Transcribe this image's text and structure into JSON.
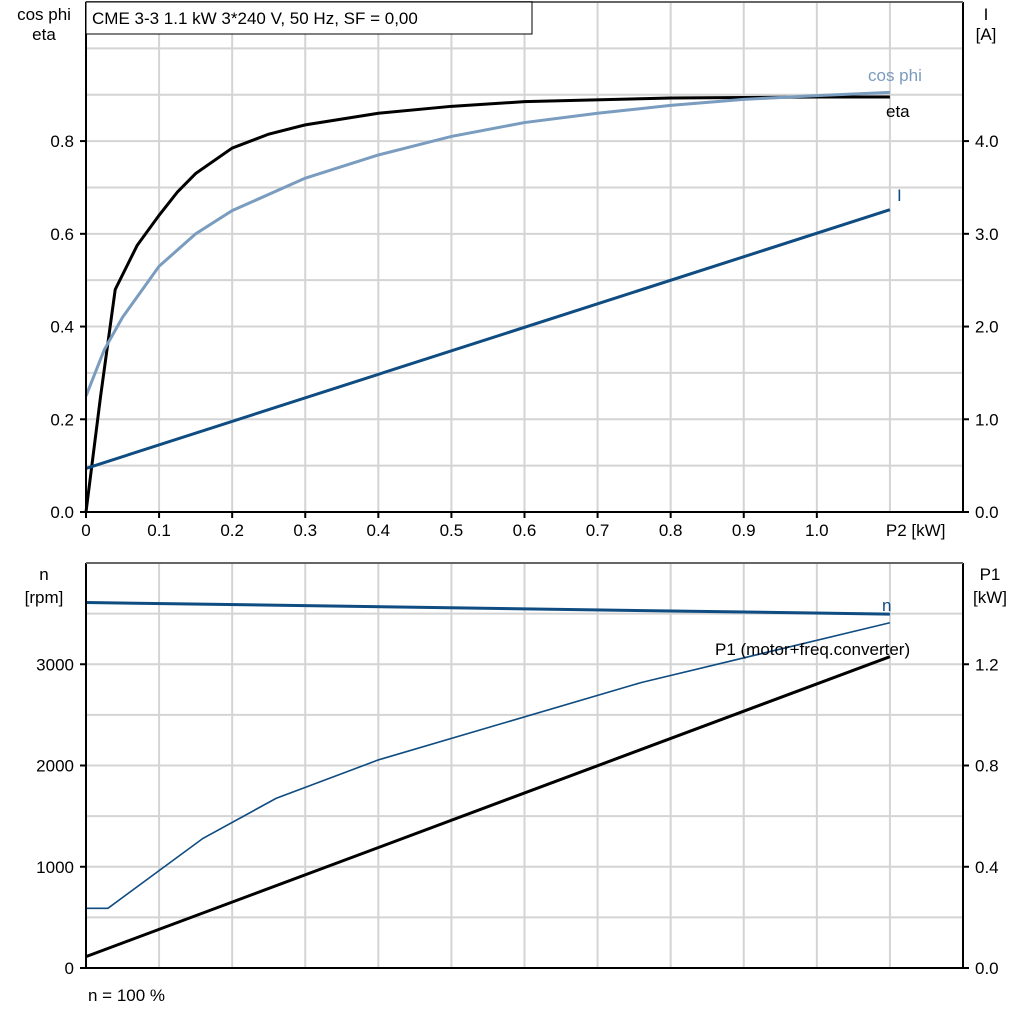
{
  "chart_data": [
    {
      "type": "line",
      "title": "CME 3-3   1.1 kW   3*240 V, 50 Hz, SF = 0,00",
      "xlabel": "P2 [kW]",
      "ylabel": [
        "cos phi",
        "eta"
      ],
      "y2label": [
        "I",
        "[A]"
      ],
      "xlim": [
        0,
        1.2
      ],
      "ylim": [
        0,
        1.1
      ],
      "y2lim": [
        0,
        5.5
      ],
      "xticks": [
        "0",
        "0.1",
        "0.2",
        "0.3",
        "0.4",
        "0.5",
        "0.6",
        "0.7",
        "0.8",
        "0.9",
        "1.0"
      ],
      "yticks": [
        "0.0",
        "0.2",
        "0.4",
        "0.6",
        "0.8"
      ],
      "y2ticks": [
        "0.0",
        "1.0",
        "2.0",
        "3.0",
        "4.0"
      ],
      "grid": true,
      "series": [
        {
          "name": "eta",
          "axis": "left",
          "color": "#000000",
          "x": [
            0,
            0.02,
            0.04,
            0.07,
            0.1,
            0.125,
            0.15,
            0.2,
            0.25,
            0.3,
            0.4,
            0.5,
            0.6,
            0.8,
            1.0,
            1.1
          ],
          "y": [
            0,
            0.25,
            0.48,
            0.575,
            0.64,
            0.69,
            0.73,
            0.785,
            0.815,
            0.835,
            0.86,
            0.875,
            0.885,
            0.893,
            0.895,
            0.895
          ]
        },
        {
          "name": "cos phi",
          "axis": "left",
          "color": "#7a9cbf",
          "x": [
            0,
            0.025,
            0.05,
            0.1,
            0.15,
            0.2,
            0.3,
            0.4,
            0.5,
            0.6,
            0.7,
            0.8,
            0.9,
            1.0,
            1.1
          ],
          "y": [
            0.25,
            0.35,
            0.42,
            0.53,
            0.6,
            0.65,
            0.72,
            0.77,
            0.81,
            0.84,
            0.86,
            0.877,
            0.89,
            0.898,
            0.905
          ]
        },
        {
          "name": "I",
          "axis": "right",
          "color": "#0f4c81",
          "x": [
            0,
            1.1
          ],
          "y": [
            0.47,
            3.26
          ]
        }
      ]
    },
    {
      "type": "area",
      "xlim": [
        0,
        1.2
      ],
      "ylabel": [
        "n",
        "[rpm]"
      ],
      "y2label": [
        "P1",
        "[kW]"
      ],
      "ylim": [
        0,
        4000
      ],
      "y2lim": [
        0,
        1.6
      ],
      "yticks": [
        "0",
        "1000",
        "2000",
        "3000"
      ],
      "y2ticks": [
        "0.0",
        "0.4",
        "0.8",
        "1.2"
      ],
      "grid": true,
      "footnote": "n = 100 %",
      "fill_color": "#d0dce8",
      "series": [
        {
          "name": "n",
          "axis": "left",
          "color": "#0f4c81",
          "x": [
            0,
            1.1
          ],
          "y": [
            3610,
            3495
          ]
        },
        {
          "name": "",
          "axis": "left",
          "color": "#0f4c81",
          "role": "area-lower-bound",
          "x": [
            0,
            0.03,
            0.16,
            0.26,
            0.4,
            0.76,
            1.1
          ],
          "y": [
            590,
            590,
            1280,
            1675,
            2055,
            2820,
            3410
          ]
        },
        {
          "name": "P1 (motor+freq.converter)",
          "axis": "right",
          "color": "#000000",
          "x": [
            0,
            1.1
          ],
          "y": [
            0.045,
            1.23
          ]
        }
      ]
    }
  ]
}
